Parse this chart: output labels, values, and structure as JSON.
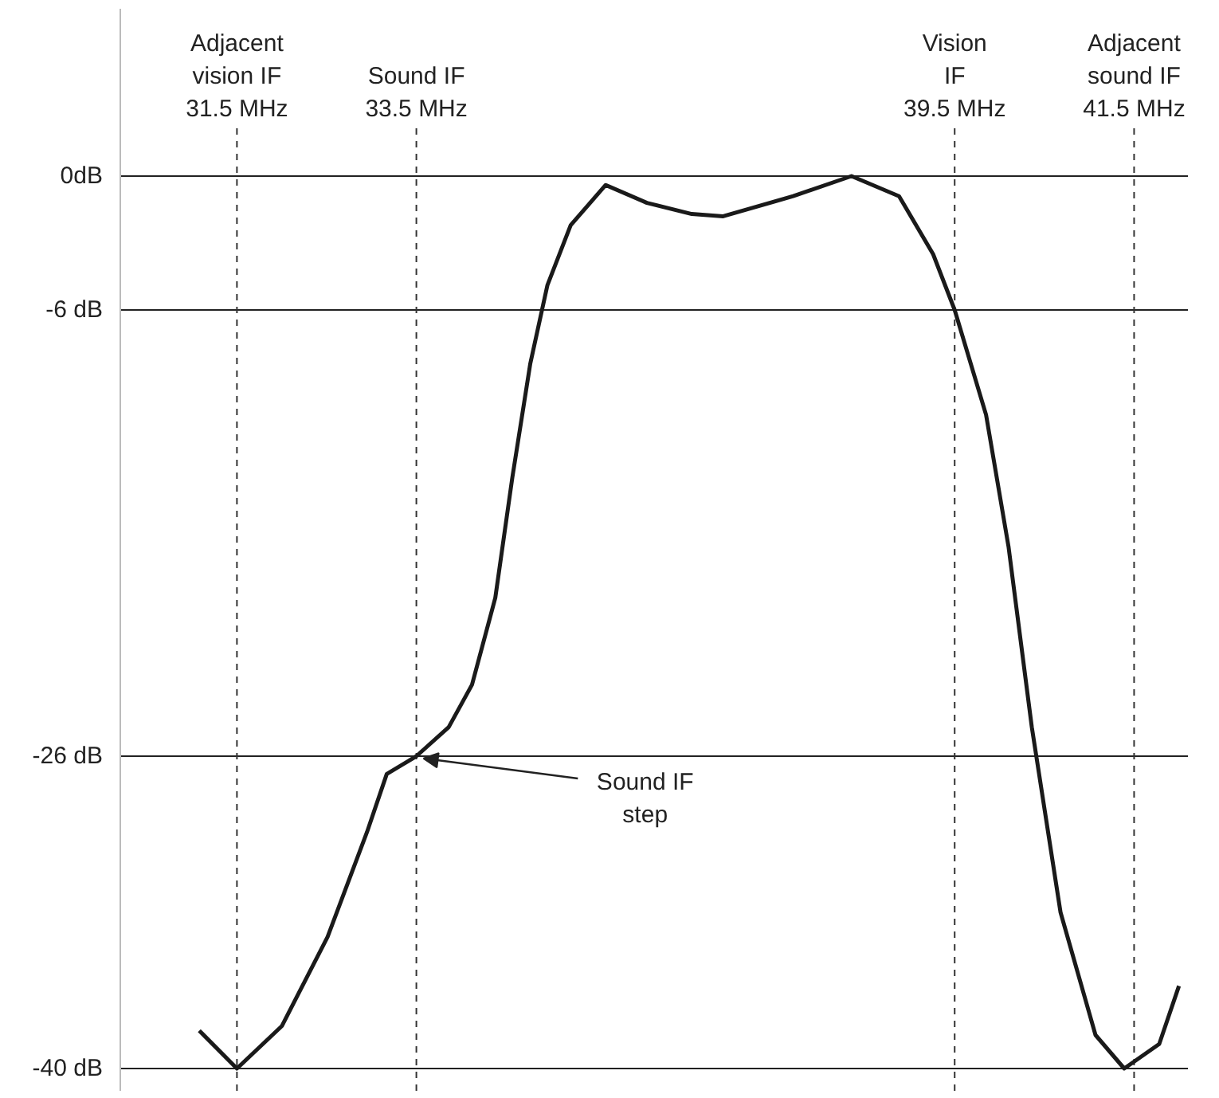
{
  "chart_data": {
    "type": "line",
    "x": [
      31.08,
      31.5,
      32.0,
      32.51,
      32.95,
      33.17,
      33.5,
      33.86,
      34.12,
      34.38,
      34.57,
      34.77,
      34.96,
      35.22,
      35.61,
      36.07,
      36.57,
      36.92,
      37.7,
      38.35,
      38.88,
      39.26,
      39.5,
      39.85,
      40.1,
      40.36,
      40.68,
      41.07,
      41.39,
      41.78,
      42.0
    ],
    "series": [
      {
        "color": "#1a1a1a",
        "values": [
          -38.3,
          -40,
          -38.1,
          -34.1,
          -29.4,
          -26.8,
          -26,
          -24.7,
          -22.8,
          -18.9,
          -13.5,
          -8.4,
          -4.9,
          -2.2,
          -0.4,
          -1.2,
          -1.7,
          -1.8,
          -0.9,
          0,
          -0.9,
          -3.5,
          -6,
          -10.7,
          -16.6,
          -24.7,
          -33.0,
          -38.5,
          -40,
          -38.9,
          -36.3
        ]
      }
    ],
    "xlim": [
      30.2,
      42.1
    ],
    "ylim": [
      -41,
      7.5
    ],
    "yticks": [
      {
        "value": 0,
        "label": "0dB"
      },
      {
        "value": -6,
        "label": "-6 dB"
      },
      {
        "value": -26,
        "label": "-26 dB"
      },
      {
        "value": -40,
        "label": "-40 dB"
      }
    ],
    "tick_labels": "y",
    "grid": "y",
    "marker": "none",
    "line_style": "solid",
    "ref_lines": [
      {
        "axis": "x",
        "value": 31.5,
        "label": "Adjacent\nvision IF\n31.5 MHz",
        "line_style": "dashed"
      },
      {
        "axis": "x",
        "value": 33.5,
        "label": "Sound IF\n33.5 MHz",
        "line_style": "dashed"
      },
      {
        "axis": "x",
        "value": 39.5,
        "label": "Vision\nIF\n39.5 MHz",
        "line_style": "dashed"
      },
      {
        "axis": "x",
        "value": 41.5,
        "label": "Adjacent\nsound IF\n41.5 MHz",
        "line_style": "dashed"
      }
    ],
    "annotations": [
      {
        "text": "Sound IF\nstep",
        "x": 33.5,
        "y": -26
      }
    ]
  }
}
